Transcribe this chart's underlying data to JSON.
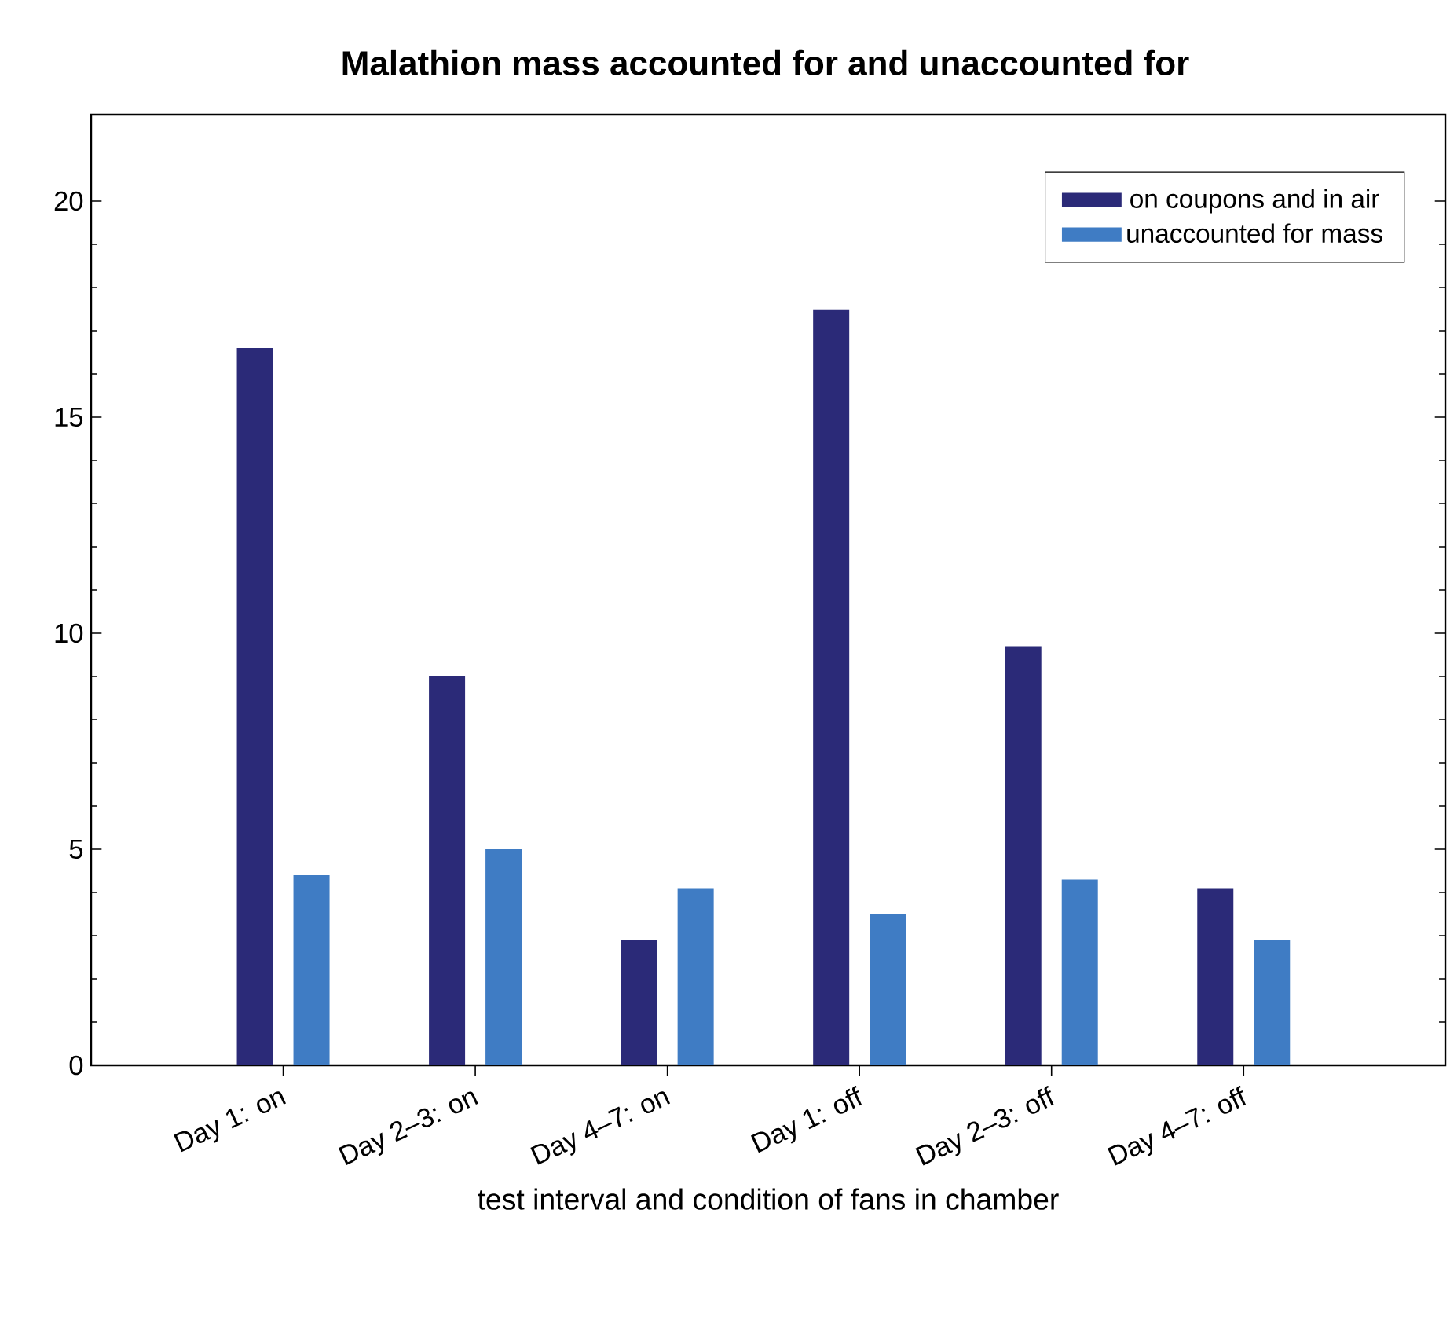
{
  "chart_data": {
    "type": "bar",
    "title": "Malathion mass accounted for and unaccounted for",
    "xlabel": "test interval and condition of fans in chamber",
    "categories": [
      "Day 1: on",
      "Day 2–3: on",
      "Day 4–7: on",
      "Day 1: off",
      "Day 2–3: off",
      "Day 4–7: off"
    ],
    "series": [
      {
        "name": "on coupons and in air",
        "color": "#2b2a78",
        "values": [
          16.6,
          9.0,
          2.9,
          17.5,
          9.7,
          4.1
        ]
      },
      {
        "name": "unaccounted for mass",
        "color": "#3f7cc4",
        "values": [
          4.4,
          5.0,
          4.1,
          3.5,
          4.3,
          2.9
        ]
      }
    ],
    "ylim": [
      0,
      22
    ],
    "yticks": [
      0,
      5,
      10,
      15,
      20
    ],
    "legend": "top right"
  }
}
